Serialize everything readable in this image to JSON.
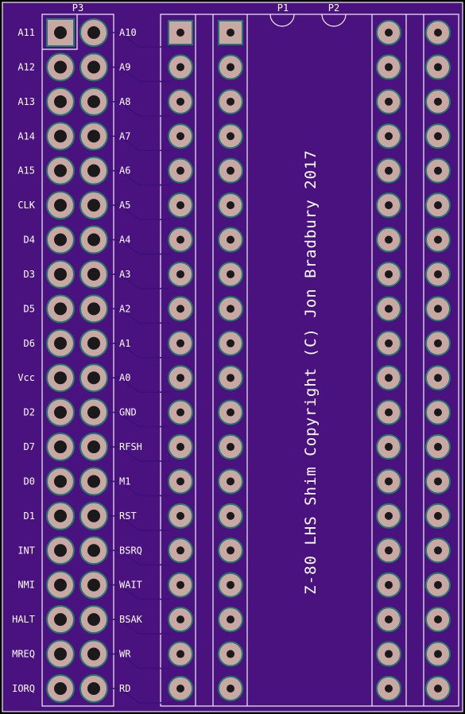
{
  "board": {
    "substrate_color": "#4a127f",
    "silkscreen_color": "#ffffff",
    "copper_color": "#c9a7a2",
    "note": "Z-80 LHS Shim Copyright (C) Jon Bradbury 2017"
  },
  "connectors": {
    "p3": {
      "ref": "P3"
    },
    "p1": {
      "ref": "P1"
    },
    "p2": {
      "ref": "P2"
    }
  },
  "left_labels": [
    "A11",
    "A12",
    "A13",
    "A14",
    "A15",
    "CLK",
    "D4",
    "D3",
    "D5",
    "D6",
    "Vcc",
    "D2",
    "D7",
    "D0",
    "D1",
    "INT",
    "NMI",
    "HALT",
    "MREQ",
    "IORQ"
  ],
  "right_labels": [
    "A10",
    "A9",
    "A8",
    "A7",
    "A6",
    "A5",
    "A4",
    "A3",
    "A2",
    "A1",
    "A0",
    "GND",
    "RFSH",
    "M1",
    "RST",
    "BSRQ",
    "WAIT",
    "BSAK",
    "WR",
    "RD"
  ]
}
